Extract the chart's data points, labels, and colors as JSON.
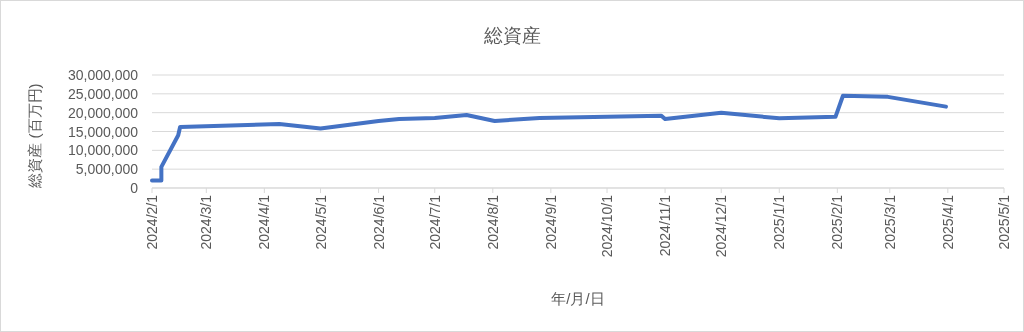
{
  "chart_data": {
    "type": "line",
    "title": "総資産",
    "xlabel": "年/月/日",
    "ylabel": "総資産 (百万円)",
    "x": [
      "2024-02-01",
      "2024-02-06",
      "2024-02-06",
      "2024-02-15",
      "2024-02-16",
      "2024-04-09",
      "2024-05-01",
      "2024-06-01",
      "2024-06-12",
      "2024-07-01",
      "2024-07-18",
      "2024-08-02",
      "2024-08-26",
      "2024-10-30",
      "2024-11-01",
      "2024-12-01",
      "2025-01-01",
      "2025-01-31",
      "2025-02-04",
      "2025-02-28",
      "2025-03-31"
    ],
    "series": [
      {
        "color": "#4472c4",
        "values": [
          2000000,
          2000000,
          5600000,
          14000000,
          16200000,
          17000000,
          15800000,
          17800000,
          18300000,
          18600000,
          19400000,
          17800000,
          18600000,
          19200000,
          18300000,
          20000000,
          18500000,
          18900000,
          24500000,
          24200000,
          21600000
        ]
      }
    ],
    "xlim": [
      "2024-02-01",
      "2025-05-01"
    ],
    "xticks": [
      {
        "value": "2024-02-01",
        "label": "2024/2/1"
      },
      {
        "value": "2024-03-01",
        "label": "2024/3/1"
      },
      {
        "value": "2024-04-01",
        "label": "2024/4/1"
      },
      {
        "value": "2024-05-01",
        "label": "2024/5/1"
      },
      {
        "value": "2024-06-01",
        "label": "2024/6/1"
      },
      {
        "value": "2024-07-01",
        "label": "2024/7/1"
      },
      {
        "value": "2024-08-01",
        "label": "2024/8/1"
      },
      {
        "value": "2024-09-01",
        "label": "2024/9/1"
      },
      {
        "value": "2024-10-01",
        "label": "2024/10/1"
      },
      {
        "value": "2024-11-01",
        "label": "2024/11/1"
      },
      {
        "value": "2024-12-01",
        "label": "2024/12/1"
      },
      {
        "value": "2025-01-01",
        "label": "2025/1/1"
      },
      {
        "value": "2025-02-01",
        "label": "2025/2/1"
      },
      {
        "value": "2025-03-01",
        "label": "2025/3/1"
      },
      {
        "value": "2025-04-01",
        "label": "2025/4/1"
      },
      {
        "value": "2025-05-01",
        "label": "2025/5/1"
      }
    ],
    "ylim": [
      0,
      30000000
    ],
    "yticks": [
      {
        "value": 0,
        "label": "0"
      },
      {
        "value": 5000000,
        "label": "5,000,000"
      },
      {
        "value": 10000000,
        "label": "10,000,000"
      },
      {
        "value": 15000000,
        "label": "15,000,000"
      },
      {
        "value": 20000000,
        "label": "20,000,000"
      },
      {
        "value": 25000000,
        "label": "25,000,000"
      },
      {
        "value": 30000000,
        "label": "30,000,000"
      }
    ],
    "grid": "y",
    "marker": "none",
    "line_style": "solid"
  }
}
